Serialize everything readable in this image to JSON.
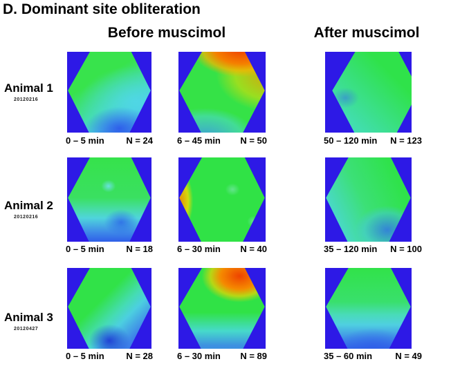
{
  "title": "D. Dominant site obliteration",
  "headers": {
    "before": "Before muscimol",
    "after": "After muscimol"
  },
  "rows": [
    {
      "animal": "Animal 1",
      "date_code": "20120216",
      "panels": [
        {
          "time": "0 – 5 min",
          "n": "N = 24"
        },
        {
          "time": "6 – 45 min",
          "n": "N = 50"
        },
        {
          "time": "50 – 120  min",
          "n": "N = 123"
        }
      ]
    },
    {
      "animal": "Animal 2",
      "date_code": "20120216",
      "panels": [
        {
          "time": "0 – 5 min",
          "n": "N = 18"
        },
        {
          "time": "6 – 30 min",
          "n": "N = 40"
        },
        {
          "time": "35 – 120  min",
          "n": "N = 100"
        }
      ]
    },
    {
      "animal": "Animal 3",
      "date_code": "20120427",
      "panels": [
        {
          "time": "0 – 5 min",
          "n": "N = 28"
        },
        {
          "time": "6 – 30 min",
          "n": "N = 89"
        },
        {
          "time": "35 – 60 min",
          "n": "N = 49"
        }
      ]
    }
  ],
  "palette": {
    "panel_background_blue": "#2d19e6",
    "map_green": "#30e246",
    "map_cyan": "#4ad8dc",
    "map_blue": "#2f5fe8",
    "map_orange": "#f58a00",
    "map_red": "#ee4300",
    "map_yellow": "#efe000"
  },
  "chart_data": {
    "type": "heatmap",
    "title": "D. Dominant site obliteration",
    "description": "3x3 grid of hexagonal interpolated spatial response maps (jet colormap: blue = low, green = mid, red = high) on royal-blue square backgrounds; rows are animals, columns are time windows before and after muscimol injection.",
    "colormap": "jet",
    "column_groups": [
      "Before muscimol",
      "Before muscimol",
      "After muscimol"
    ],
    "rows": [
      {
        "animal": "Animal 1",
        "session_code": "20120216",
        "panels": [
          {
            "time_window_min": [
              0,
              5
            ],
            "n_trials": 24,
            "pattern": "green upper field, cyan-to-blue lower-right region, blue at bottom"
          },
          {
            "time_window_min": [
              6,
              45
            ],
            "n_trials": 50,
            "pattern": "red/orange hotspot along top and upper-right edge with yellow fringe, green center, cyan lower left"
          },
          {
            "time_window_min": [
              50,
              120
            ],
            "n_trials": 123,
            "pattern": "nearly uniform green, slightly teal lower-left, faint blue patch at mid-left"
          }
        ]
      },
      {
        "animal": "Animal 2",
        "session_code": "20120216",
        "panels": [
          {
            "time_window_min": [
              0,
              5
            ],
            "n_trials": 18,
            "pattern": "green upper two-thirds with small cyan dot, cyan/blue bottom band with darker blue patch right of center"
          },
          {
            "time_window_min": [
              6,
              30
            ],
            "n_trials": 40,
            "pattern": "uniform green with orange-yellow vertical stripe on left edge"
          },
          {
            "time_window_min": [
              35,
              120
            ],
            "n_trials": 100,
            "pattern": "green upper right, teal left side, blue region at lower right"
          }
        ]
      },
      {
        "animal": "Animal 3",
        "session_code": "20120427",
        "panels": [
          {
            "time_window_min": [
              0,
              5
            ],
            "n_trials": 28,
            "pattern": "green upper-left half, cyan diagonal band, blue lower right with dark navy blotch at bottom center"
          },
          {
            "time_window_min": [
              6,
              30
            ],
            "n_trials": 89,
            "pattern": "orange/red blob in upper right with yellow fringe, green middle, cyan-blue bottom"
          },
          {
            "time_window_min": [
              35,
              60
            ],
            "n_trials": 49,
            "pattern": "green top grading through cyan to blue at bottom"
          }
        ]
      }
    ]
  }
}
